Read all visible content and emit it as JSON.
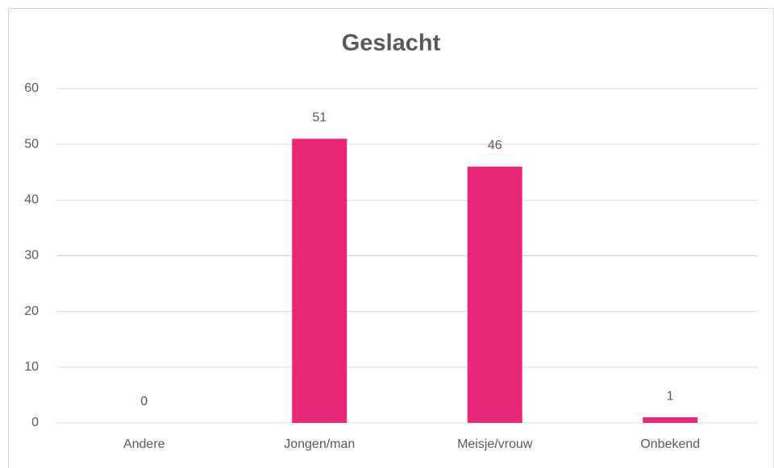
{
  "chart_data": {
    "type": "bar",
    "title": "Geslacht",
    "categories": [
      "Andere",
      "Jongen/man",
      "Meisje/vrouw",
      "Onbekend"
    ],
    "values": [
      0,
      51,
      46,
      1
    ],
    "color": "#e8277a",
    "ylim": [
      0,
      60
    ],
    "yticks": [
      0,
      10,
      20,
      30,
      40,
      50,
      60
    ],
    "grid": true,
    "data_labels": true
  }
}
